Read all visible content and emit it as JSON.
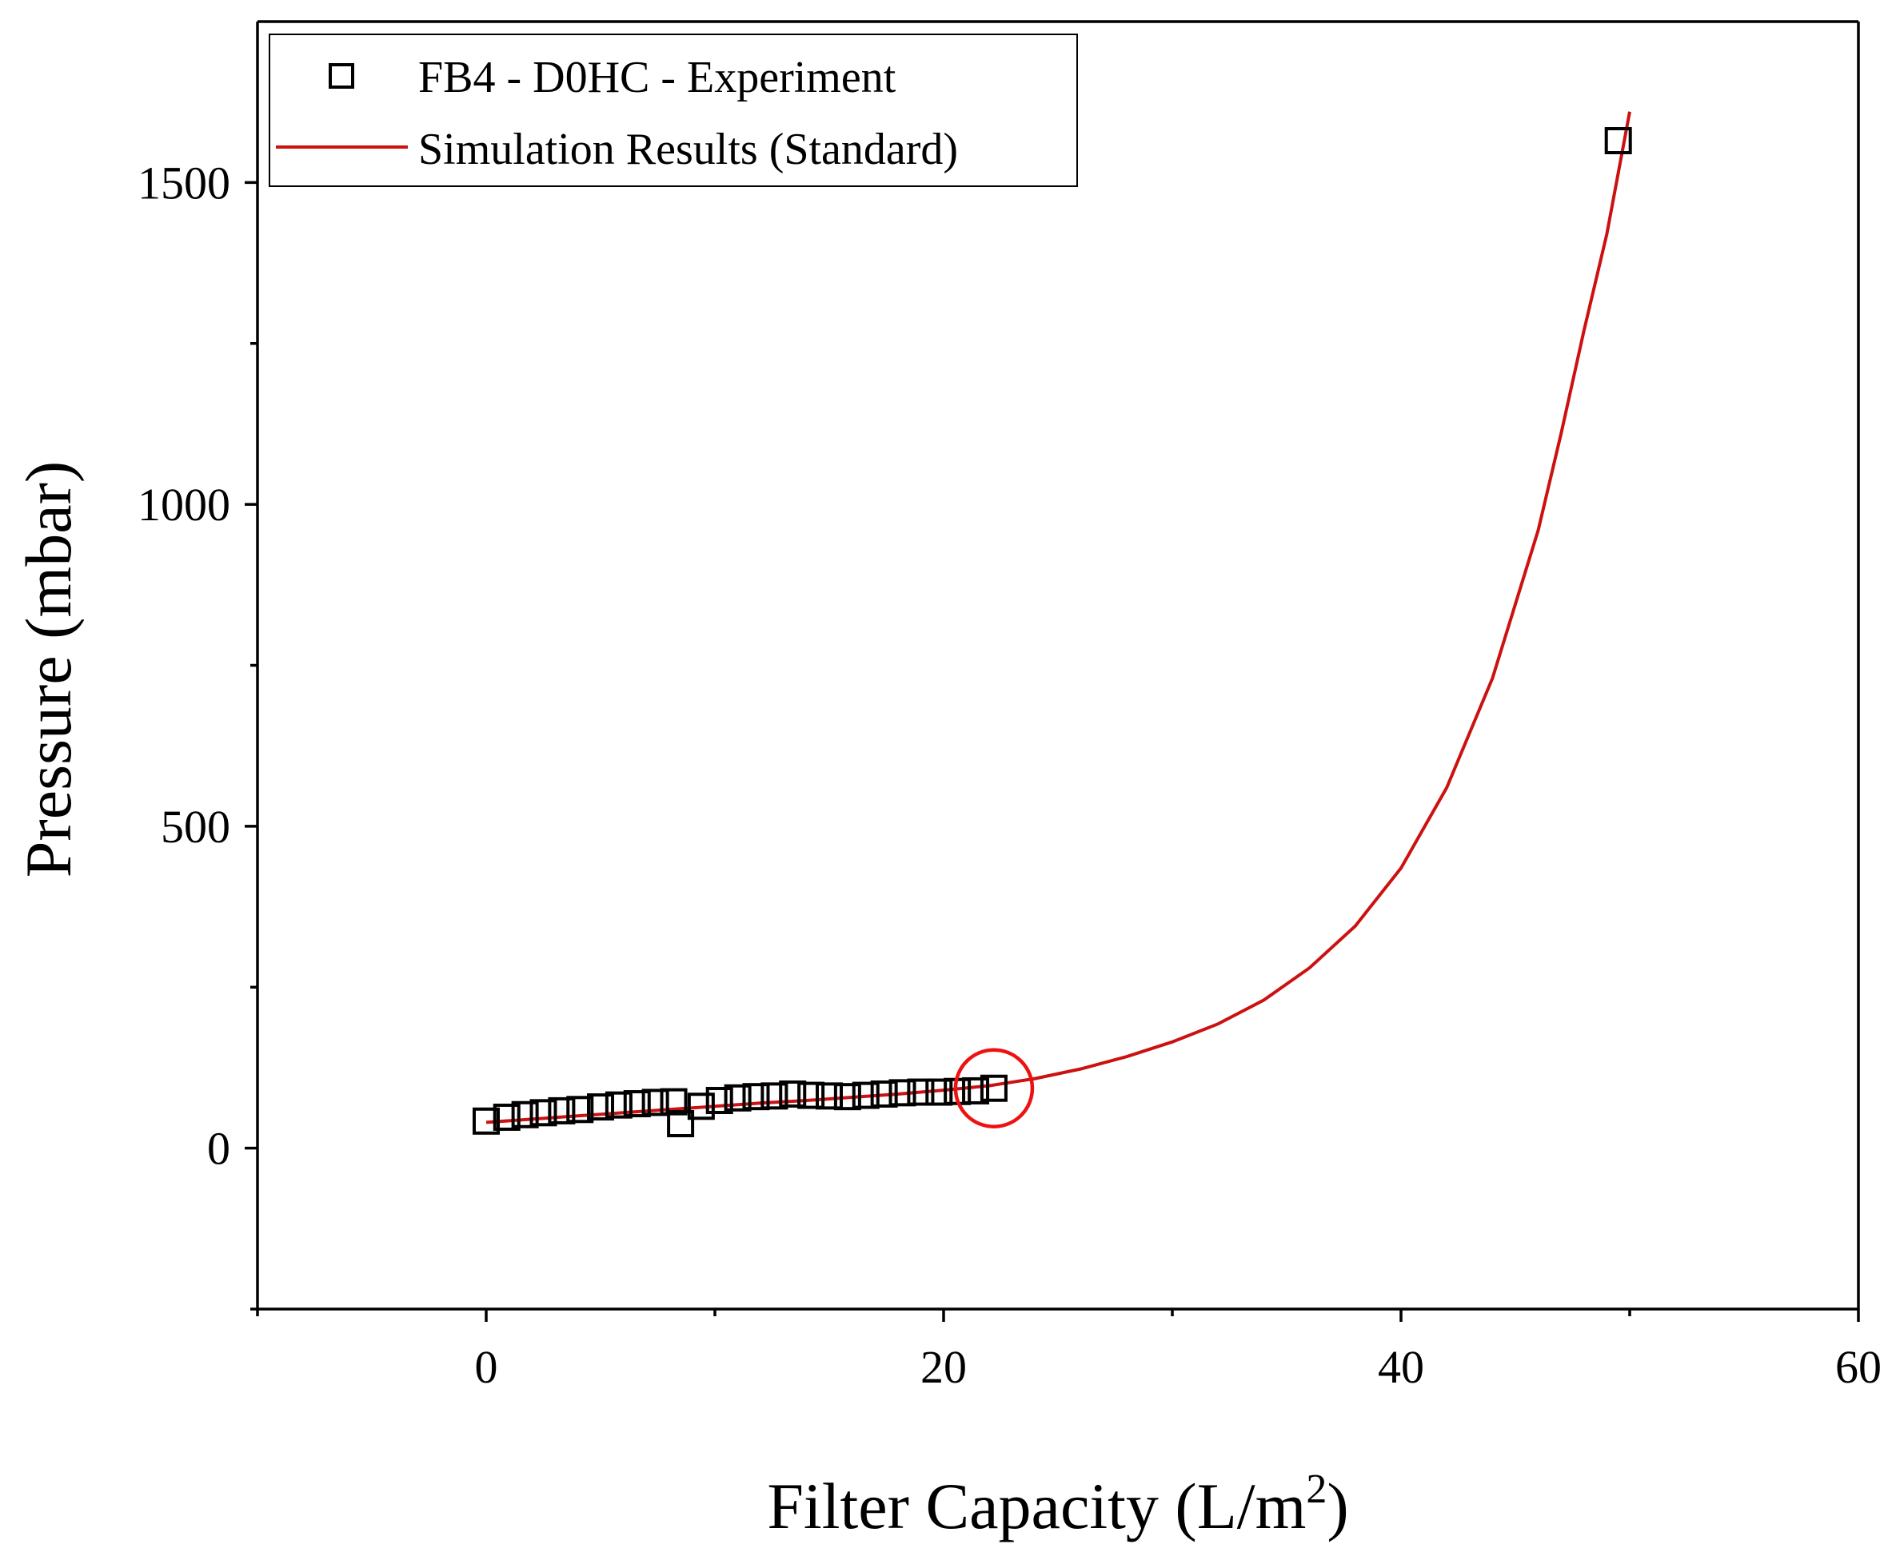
{
  "chart_data": {
    "type": "scatter",
    "xlabel": "Filter Capacity (L/m",
    "xlabel_sup": "2",
    "xlabel_suffix": ")",
    "ylabel": "Pressure (mbar)",
    "xlim": [
      -10,
      60
    ],
    "ylim": [
      -250,
      1750
    ],
    "x_ticks": [
      0,
      20,
      40,
      60
    ],
    "x_minor_ticks": [
      -10,
      10,
      30,
      50
    ],
    "y_ticks": [
      0,
      500,
      1000,
      1500
    ],
    "y_minor_ticks": [
      -250,
      250,
      750,
      1250
    ],
    "grid": false,
    "legend_position": "top-left",
    "series": [
      {
        "name": "FB4 - D0HC - Experiment",
        "kind": "scatter",
        "marker": "open-square",
        "color": "#000000",
        "x": [
          0,
          0.9,
          1.7,
          2.5,
          3.3,
          4.1,
          5.0,
          5.8,
          6.6,
          7.4,
          8.2,
          8.5,
          9.4,
          10.2,
          11.0,
          11.8,
          12.6,
          13.4,
          14.2,
          15.0,
          15.8,
          16.6,
          17.4,
          18.2,
          19.0,
          19.8,
          20.6,
          21.4,
          22.2,
          49.5
        ],
        "y": [
          42,
          48,
          52,
          55,
          58,
          60,
          64,
          67,
          69,
          71,
          72,
          38,
          65,
          74,
          78,
          80,
          81,
          84,
          82,
          81,
          80,
          82,
          84,
          86,
          87,
          87,
          88,
          89,
          93,
          1565
        ]
      },
      {
        "name": "Simulation Results (Standard)",
        "kind": "line",
        "color": "#cc1111",
        "x": [
          0,
          2,
          4,
          6,
          8,
          10,
          12,
          14,
          16,
          18,
          20,
          22,
          24,
          26,
          28,
          30,
          32,
          34,
          36,
          38,
          40,
          42,
          44,
          46,
          47,
          48,
          49,
          50
        ],
        "y": [
          40,
          45,
          50,
          55,
          60,
          65,
          70,
          74,
          79,
          84,
          90,
          97,
          108,
          123,
          142,
          165,
          193,
          230,
          280,
          345,
          435,
          560,
          730,
          960,
          1110,
          1270,
          1420,
          1610
        ]
      }
    ],
    "annotations": [
      {
        "type": "circle",
        "color": "#ee1111",
        "x": 22.2,
        "y": 93
      }
    ]
  }
}
